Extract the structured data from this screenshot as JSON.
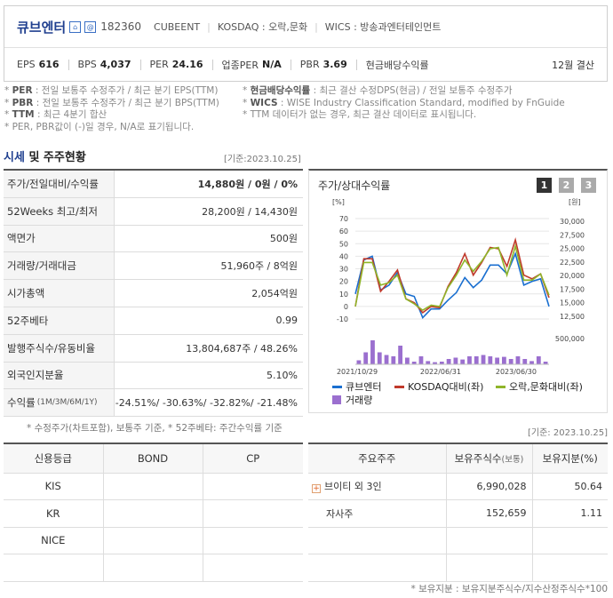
{
  "header": {
    "company_name": "큐브엔터",
    "code": "182360",
    "english_name": "CUBEENT",
    "market": "KOSDAQ : 오락,문화",
    "wics": "WICS : 방송과엔터테인먼트",
    "icon1": "home-icon",
    "icon2": "at-icon",
    "stats": [
      {
        "label": "EPS",
        "value": "616"
      },
      {
        "label": "BPS",
        "value": "4,037"
      },
      {
        "label": "PER",
        "value": "24.16"
      },
      {
        "label": "업종PER",
        "value": "N/A"
      },
      {
        "label": "PBR",
        "value": "3.69"
      },
      {
        "label": "현금배당수익률",
        "value": ""
      }
    ],
    "settlement": "12월 결산"
  },
  "notes": {
    "left": [
      {
        "key": "PER",
        "text": ": 전일 보통주 수정주가 / 최근 분기 EPS(TTM)"
      },
      {
        "key": "PBR",
        "text": ": 전일 보통주 수정주가 / 최근 분기 BPS(TTM)"
      },
      {
        "key": "TTM",
        "text": ": 최근 4분기 합산"
      },
      {
        "key": "",
        "text": "PER, PBR값이 (-)일 경우, N/A로 표기됩니다."
      }
    ],
    "right": [
      {
        "key": "현금배당수익률",
        "text": ": 최근 결산 수정DPS(현금) / 전일 보통주 수정주가"
      },
      {
        "key": "WICS",
        "text": ": WISE Industry Classification Standard, modified by FnGuide"
      },
      {
        "key": "",
        "text": "TTM 데이터가 없는 경우, 최근 결산 데이터로 표시됩니다."
      }
    ]
  },
  "market_section": {
    "title_blue": "시세",
    "title_rest": " 및 주주현황",
    "basis": "[기준:2023.10.25]",
    "rows": [
      {
        "label": "주가/전일대비/수익률",
        "sub": "",
        "value": "14,880원 / 0원 / 0%"
      },
      {
        "label": "52Weeks 최고/최저",
        "sub": "",
        "value": "28,200원 / 14,430원"
      },
      {
        "label": "액면가",
        "sub": "",
        "value": "500원"
      },
      {
        "label": "거래량/거래대금",
        "sub": "",
        "value": "51,960주 / 8억원"
      },
      {
        "label": "시가총액",
        "sub": "",
        "value": "2,054억원"
      },
      {
        "label": "52주베타",
        "sub": "",
        "value": "0.99"
      },
      {
        "label": "발행주식수/유동비율",
        "sub": "",
        "value": "13,804,687주 / 48.26%"
      },
      {
        "label": "외국인지분율",
        "sub": "",
        "value": "5.10%"
      },
      {
        "label": "수익률",
        "sub": "(1M/3M/6M/1Y)",
        "value": "-24.51%/ -30.63%/ -32.82%/ -21.48%"
      }
    ],
    "note": "* 수정주가(차트포함), 보통주 기준, * 52주베타: 주간수익률 기준"
  },
  "chart_panel": {
    "title": "주가/상대수익률",
    "pages": [
      "1",
      "2",
      "3"
    ]
  },
  "chart_data": {
    "type": "line",
    "x_ticks": [
      "2021/10/29",
      "2022/06/31",
      "2023/06/30"
    ],
    "y_left_unit": "[%]",
    "y_left_ticks": [
      "70",
      "60",
      "50",
      "40",
      "30",
      "20",
      "10",
      "0",
      "-10"
    ],
    "y_right_unit": "[원]",
    "y_right_ticks": [
      "30,000",
      "27,500",
      "25,000",
      "22,500",
      "20,000",
      "17,500",
      "15,000",
      "12,500"
    ],
    "volume_tick": "500,000",
    "ylim": [
      -10,
      70
    ],
    "series": [
      {
        "name": "큐브엔터",
        "color": "#1a6fd0",
        "values": [
          10,
          37,
          40,
          13,
          17,
          27,
          10,
          8,
          -9,
          -2,
          -2,
          5,
          11,
          23,
          15,
          21,
          33,
          33,
          26,
          42,
          17,
          20,
          22,
          0
        ]
      },
      {
        "name": "KOSDAQ대비(좌)",
        "color": "#c0392b",
        "values": [
          0,
          38,
          38,
          12,
          20,
          29,
          6,
          3,
          -5,
          0,
          -1,
          16,
          27,
          42,
          25,
          35,
          47,
          46,
          32,
          53,
          25,
          22,
          26,
          7
        ]
      },
      {
        "name": "오락,문화대비(좌)",
        "color": "#8fb52a",
        "values": [
          0,
          35,
          35,
          17,
          19,
          25,
          6,
          2,
          -3,
          1,
          0,
          15,
          25,
          37,
          28,
          36,
          46,
          47,
          25,
          48,
          21,
          21,
          26,
          9
        ]
      }
    ],
    "volume": {
      "name": "거래량",
      "color": "#9b6fcf",
      "values": [
        0.15,
        0.45,
        0.9,
        0.45,
        0.35,
        0.3,
        0.7,
        0.25,
        0.1,
        0.3,
        0.12,
        0.08,
        0.1,
        0.2,
        0.25,
        0.18,
        0.3,
        0.3,
        0.35,
        0.3,
        0.25,
        0.28,
        0.2,
        0.3,
        0.2,
        0.12,
        0.3,
        0.1
      ]
    }
  },
  "credit": {
    "headers": [
      "신용등급",
      "BOND",
      "CP"
    ],
    "rows": [
      [
        "KIS",
        "",
        ""
      ],
      [
        "KR",
        "",
        ""
      ],
      [
        "NICE",
        "",
        ""
      ],
      [
        "",
        "",
        ""
      ]
    ],
    "basis": "[기준: 2023.10.25]"
  },
  "holders": {
    "headers": [
      "주요주주",
      "보유주식수",
      "(보통)",
      "보유지분(%)"
    ],
    "rows": [
      {
        "name": "브이티 외 3인",
        "expand": "+",
        "shares": "6,990,028",
        "pct": "50.64"
      },
      {
        "name": "자사주",
        "expand": "",
        "shares": "152,659",
        "pct": "1.11"
      },
      {
        "name": "",
        "expand": "",
        "shares": "",
        "pct": ""
      },
      {
        "name": "",
        "expand": "",
        "shares": "",
        "pct": ""
      }
    ],
    "note": "* 보유지분 : 보유지분주식수/지수산정주식수*100"
  }
}
